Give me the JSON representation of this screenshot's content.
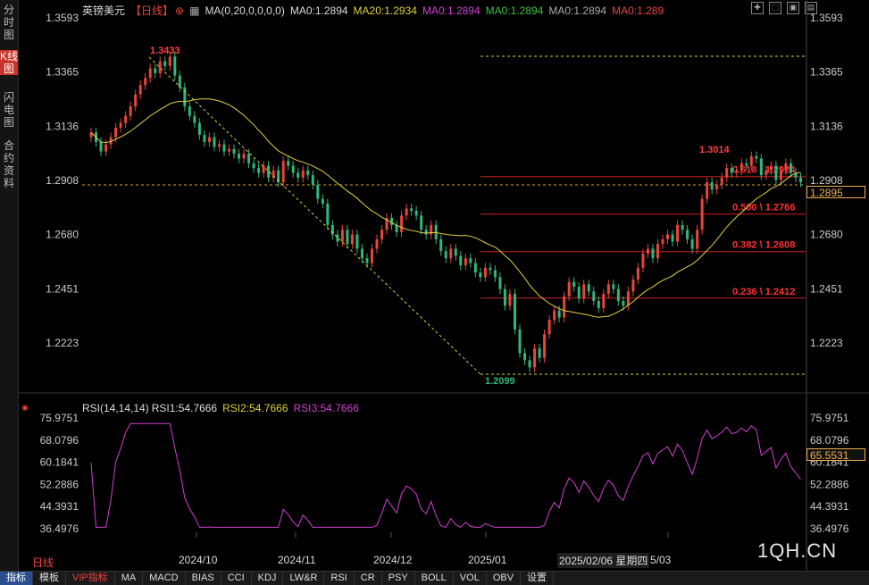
{
  "sidebar": {
    "tabs": [
      {
        "label": "分时图",
        "active": false
      },
      {
        "label": "K线图",
        "active": true
      },
      {
        "label": "闪电图",
        "active": false
      },
      {
        "label": "合约资料",
        "active": false
      }
    ]
  },
  "header": {
    "symbol": "英镑美元",
    "period": "【日线】",
    "ma_params": "MA(0,20,0,0,0,0)",
    "ma_values": [
      {
        "label": "MA0:1.2894",
        "color": "#dddddd"
      },
      {
        "label": "MA20:1.2934",
        "color": "#e0d040"
      },
      {
        "label": "MA0:1.2894",
        "color": "#d040d0"
      },
      {
        "label": "MA0:1.2894",
        "color": "#40c040"
      },
      {
        "label": "MA0:1.2894",
        "color": "#aaaaaa"
      },
      {
        "label": "MA0:1.289",
        "color": "#e8453c"
      }
    ]
  },
  "price_axis": {
    "labels": [
      "1.3593",
      "1.3365",
      "1.3136",
      "1.2908",
      "1.2680",
      "1.2451",
      "1.2223"
    ],
    "current_price": "1.2895"
  },
  "annotations": {
    "high": "1.3433",
    "low": "1.2099",
    "recent_high": "1.3014"
  },
  "fibonacci": [
    {
      "label": "0.618 \\ 1.2924",
      "price": 1.2924
    },
    {
      "label": "0.500 \\ 1.2766",
      "price": 1.2766
    },
    {
      "label": "0.382 \\ 1.2608",
      "price": 1.2608
    },
    {
      "label": "0.236 \\ 1.2412",
      "price": 1.2412
    }
  ],
  "rsi": {
    "params": "RSI(14,14,14)",
    "values": [
      {
        "label": "RSI1:54.7666",
        "color": "#dddddd"
      },
      {
        "label": "RSI2:54.7666",
        "color": "#e0d040"
      },
      {
        "label": "RSI3:54.7666",
        "color": "#d040d0"
      }
    ],
    "axis_labels": [
      "75.9751",
      "68.0796",
      "60.1841",
      "52.2886",
      "44.3931",
      "36.4976"
    ],
    "current": "65.5531"
  },
  "time_axis": [
    "2024/10",
    "2024/11",
    "2024/12",
    "2025/01",
    "5/03"
  ],
  "cursor_date": "2025/02/06 星期四",
  "period_label": "日线",
  "bottom_tabs": [
    {
      "label": "指标",
      "active": true
    },
    {
      "label": "模板"
    },
    {
      "label": "VIP指标",
      "vip": true
    },
    {
      "label": "MA"
    },
    {
      "label": "MACD"
    },
    {
      "label": "BIAS"
    },
    {
      "label": "CCI"
    },
    {
      "label": "KDJ"
    },
    {
      "label": "LW&R"
    },
    {
      "label": "RSI"
    },
    {
      "label": "CR"
    },
    {
      "label": "PSY"
    },
    {
      "label": "BOLL"
    },
    {
      "label": "VOL"
    },
    {
      "label": "OBV"
    },
    {
      "label": "设置"
    }
  ],
  "watermark": "1QH.CN",
  "toolbar_icons": [
    "grid-icon",
    "expand-icon",
    "window-icon",
    "layout-icon"
  ],
  "chart_data": {
    "type": "candlestick",
    "y_range": [
      1.2099,
      1.3593
    ],
    "fib_levels": [
      1.2924,
      1.2766,
      1.2608,
      1.2412
    ],
    "high": 1.3433,
    "low": 1.2099
  }
}
